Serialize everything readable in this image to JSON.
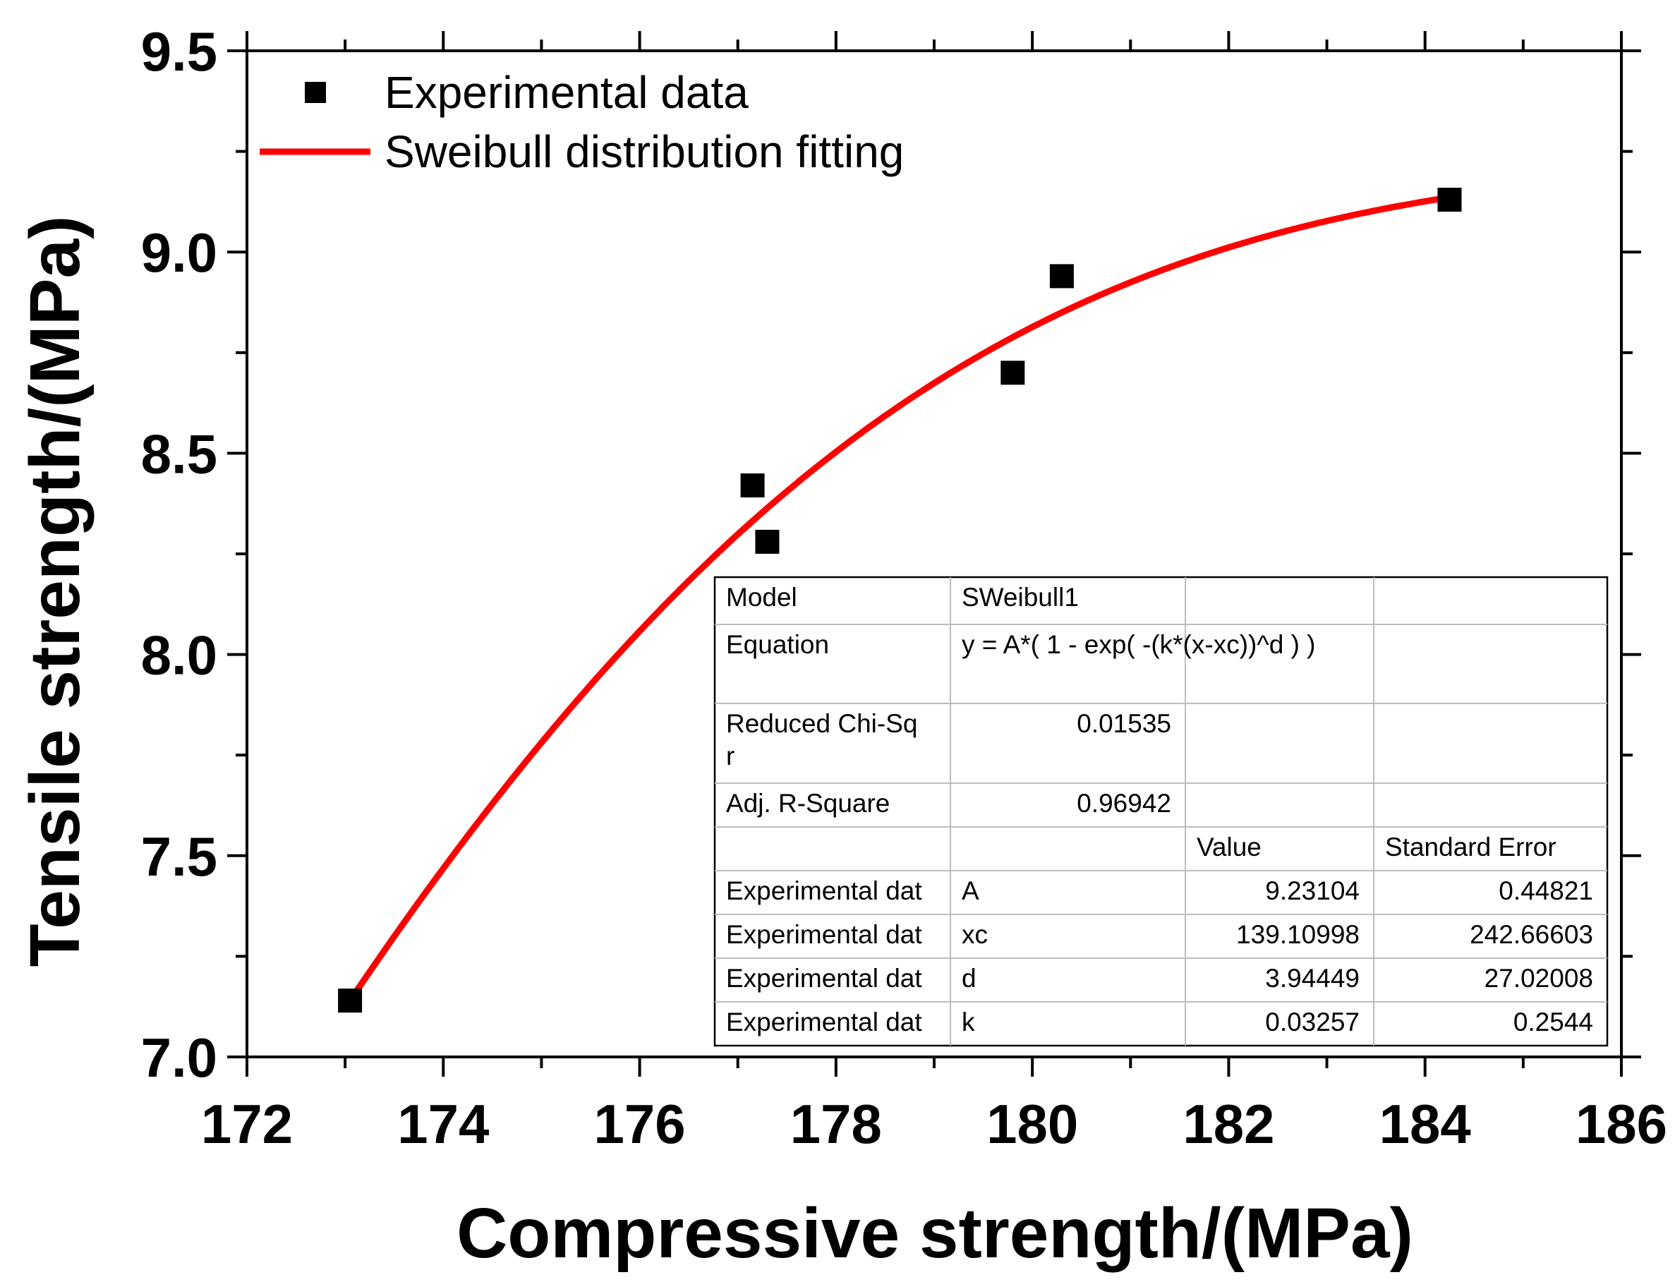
{
  "chart_data": {
    "type": "scatter",
    "xlabel": "Compressive strength/(MPa)",
    "ylabel": "Tensile strength/(MPa)",
    "xlim": [
      172,
      186
    ],
    "ylim": [
      7.0,
      9.5
    ],
    "xticks": [
      172,
      174,
      176,
      178,
      180,
      182,
      184,
      186
    ],
    "yticks": [
      7.0,
      7.5,
      8.0,
      8.5,
      9.0,
      9.5
    ],
    "xtick_labels": [
      "172",
      "174",
      "176",
      "178",
      "180",
      "182",
      "184",
      "186"
    ],
    "ytick_labels": [
      "7.0",
      "7.5",
      "8.0",
      "8.5",
      "9.0",
      "9.5"
    ],
    "x_minor_step": 1,
    "y_minor_step": 0.25,
    "series": [
      {
        "name": "Experimental data",
        "kind": "scatter",
        "marker": "square",
        "color": "#000000",
        "x": [
          173.05,
          177.15,
          177.3,
          179.8,
          180.3,
          184.25
        ],
        "y": [
          7.14,
          8.42,
          8.28,
          8.7,
          8.94,
          9.13
        ]
      },
      {
        "name": "Sweibull distribution fitting",
        "kind": "line",
        "color": "#ff0000",
        "model": "SWeibull1",
        "x_range": [
          173.05,
          184.25
        ],
        "params": {
          "A": 9.23104,
          "xc": 139.10998,
          "d": 3.94449,
          "k": 0.03257
        }
      }
    ],
    "legend": {
      "position": "top-left",
      "entries": [
        "Experimental data",
        "Sweibull distribution fitting"
      ]
    },
    "fit_table": {
      "position": "bottom-right",
      "rows": [
        [
          "Model",
          "SWeibull1",
          "",
          ""
        ],
        [
          "Equation",
          "y = A*( 1 - exp( -(k*(x-xc))^d ) )",
          "",
          ""
        ],
        [
          "Reduced Chi-Sqr",
          "0.01535",
          "",
          ""
        ],
        [
          "Adj. R-Square",
          "0.96942",
          "",
          ""
        ],
        [
          "",
          "",
          "Value",
          "Standard Error"
        ],
        [
          "Experimental dat",
          "A",
          "9.23104",
          "0.44821"
        ],
        [
          "Experimental dat",
          "xc",
          "139.10998",
          "242.66603"
        ],
        [
          "Experimental dat",
          "d",
          "3.94449",
          "27.02008"
        ],
        [
          "Experimental dat",
          "k",
          "0.03257",
          "0.2544"
        ]
      ]
    }
  }
}
